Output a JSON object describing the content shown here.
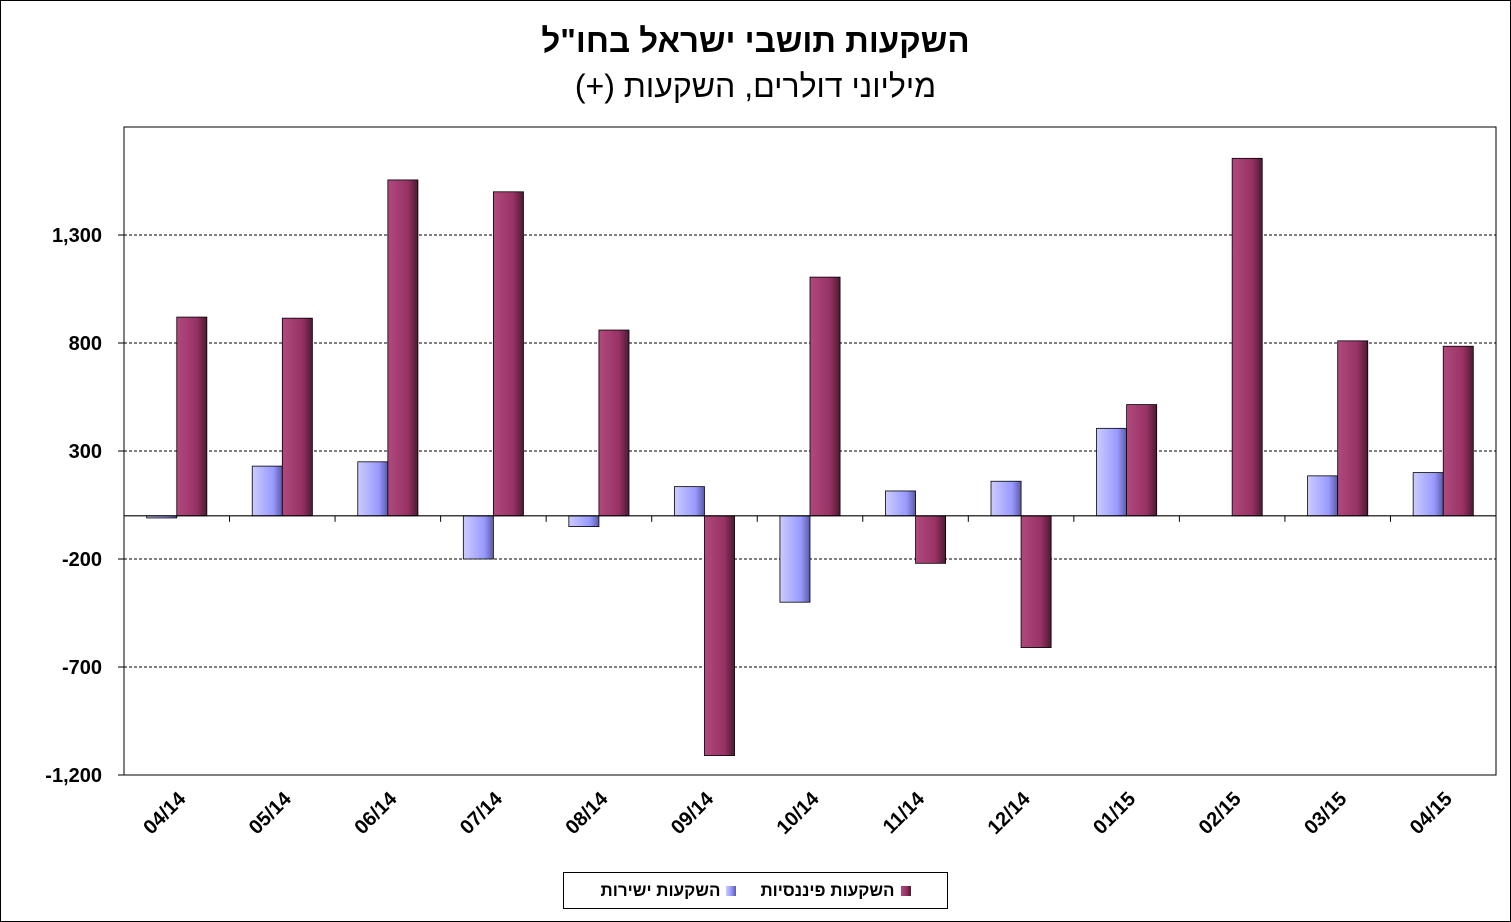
{
  "chart_data": {
    "type": "bar",
    "title": "השקעות תושבי ישראל בחו\"ל",
    "subtitle": "מיליוני דולרים, השקעות (+)",
    "categories": [
      "04/14",
      "05/14",
      "06/14",
      "07/14",
      "08/14",
      "09/14",
      "10/14",
      "11/14",
      "12/14",
      "01/15",
      "02/15",
      "03/15",
      "04/15"
    ],
    "series": [
      {
        "name": "השקעות ישירות",
        "color": "#9999ff",
        "values": [
          -10,
          230,
          250,
          -200,
          -50,
          135,
          -400,
          115,
          160,
          405,
          0,
          185,
          200
        ]
      },
      {
        "name": "השקעות פיננסיות",
        "color": "#993366",
        "values": [
          920,
          915,
          1555,
          1500,
          860,
          -1110,
          1105,
          -220,
          -610,
          515,
          1655,
          810,
          785
        ]
      }
    ],
    "ylim": [
      -1200,
      1800
    ],
    "yticks": [
      -1200,
      -700,
      -200,
      300,
      800,
      1300
    ],
    "ytick_labels": [
      "-1,200",
      "-700",
      "-200",
      "300",
      "800",
      "1,300"
    ],
    "grid": true,
    "legend_position": "bottom"
  }
}
